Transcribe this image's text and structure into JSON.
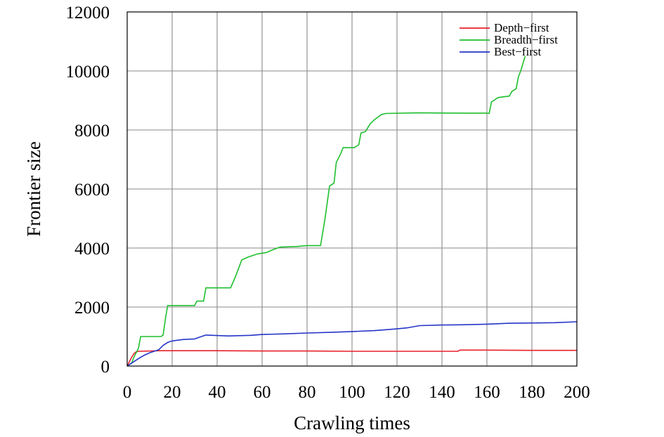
{
  "chart_data": {
    "type": "line",
    "title": "",
    "xlabel": "Crawling times",
    "ylabel": "Frontier size",
    "xlim": [
      0,
      200
    ],
    "ylim": [
      0,
      12000
    ],
    "xticks": [
      "0",
      "20",
      "40",
      "60",
      "80",
      "100",
      "120",
      "140",
      "160",
      "180",
      "200"
    ],
    "yticks": [
      "0",
      "2000",
      "4000",
      "6000",
      "8000",
      "10000",
      "12000"
    ],
    "grid": true,
    "legend_position": "top-right",
    "series": [
      {
        "name": "Depth−first",
        "color": "#e8202a",
        "points": [
          [
            0,
            0
          ],
          [
            1,
            150
          ],
          [
            2,
            300
          ],
          [
            3,
            420
          ],
          [
            4,
            480
          ],
          [
            5,
            500
          ],
          [
            15,
            520
          ],
          [
            40,
            520
          ],
          [
            60,
            510
          ],
          [
            80,
            510
          ],
          [
            100,
            500
          ],
          [
            120,
            500
          ],
          [
            140,
            500
          ],
          [
            147,
            500
          ],
          [
            148,
            540
          ],
          [
            160,
            540
          ],
          [
            180,
            530
          ],
          [
            200,
            530
          ]
        ]
      },
      {
        "name": "Breadth−first",
        "color": "#1fbf2e",
        "points": [
          [
            0,
            0
          ],
          [
            2,
            100
          ],
          [
            3,
            300
          ],
          [
            5,
            600
          ],
          [
            6,
            1000
          ],
          [
            15,
            1000
          ],
          [
            16,
            1050
          ],
          [
            17,
            1600
          ],
          [
            18,
            2050
          ],
          [
            30,
            2050
          ],
          [
            31,
            2200
          ],
          [
            34,
            2200
          ],
          [
            35,
            2650
          ],
          [
            46,
            2650
          ],
          [
            48,
            3000
          ],
          [
            51,
            3600
          ],
          [
            54,
            3700
          ],
          [
            56,
            3750
          ],
          [
            58,
            3800
          ],
          [
            62,
            3850
          ],
          [
            65,
            3950
          ],
          [
            68,
            4030
          ],
          [
            75,
            4050
          ],
          [
            80,
            4080
          ],
          [
            86,
            4080
          ],
          [
            88,
            5000
          ],
          [
            90,
            6100
          ],
          [
            92,
            6200
          ],
          [
            93,
            6900
          ],
          [
            95,
            7200
          ],
          [
            96,
            7400
          ],
          [
            101,
            7400
          ],
          [
            103,
            7500
          ],
          [
            104,
            7900
          ],
          [
            106,
            7950
          ],
          [
            108,
            8200
          ],
          [
            110,
            8350
          ],
          [
            113,
            8520
          ],
          [
            115,
            8560
          ],
          [
            130,
            8580
          ],
          [
            150,
            8570
          ],
          [
            160,
            8570
          ],
          [
            161,
            8560
          ],
          [
            162,
            8950
          ],
          [
            163,
            9000
          ],
          [
            165,
            9100
          ],
          [
            170,
            9150
          ],
          [
            171,
            9300
          ],
          [
            173,
            9400
          ],
          [
            174,
            9800
          ],
          [
            175,
            10000
          ],
          [
            176,
            10250
          ],
          [
            177,
            10500
          ]
        ]
      },
      {
        "name": "Best−first",
        "color": "#2535c8",
        "points": [
          [
            0,
            0
          ],
          [
            2,
            100
          ],
          [
            4,
            200
          ],
          [
            6,
            300
          ],
          [
            8,
            380
          ],
          [
            10,
            450
          ],
          [
            12,
            500
          ],
          [
            14,
            550
          ],
          [
            16,
            700
          ],
          [
            18,
            800
          ],
          [
            20,
            850
          ],
          [
            25,
            900
          ],
          [
            30,
            920
          ],
          [
            33,
            1000
          ],
          [
            35,
            1050
          ],
          [
            45,
            1020
          ],
          [
            55,
            1040
          ],
          [
            60,
            1070
          ],
          [
            70,
            1090
          ],
          [
            80,
            1120
          ],
          [
            90,
            1140
          ],
          [
            100,
            1170
          ],
          [
            110,
            1200
          ],
          [
            120,
            1260
          ],
          [
            125,
            1300
          ],
          [
            130,
            1370
          ],
          [
            140,
            1390
          ],
          [
            150,
            1400
          ],
          [
            160,
            1420
          ],
          [
            170,
            1450
          ],
          [
            180,
            1460
          ],
          [
            190,
            1470
          ],
          [
            200,
            1500
          ]
        ]
      }
    ]
  }
}
